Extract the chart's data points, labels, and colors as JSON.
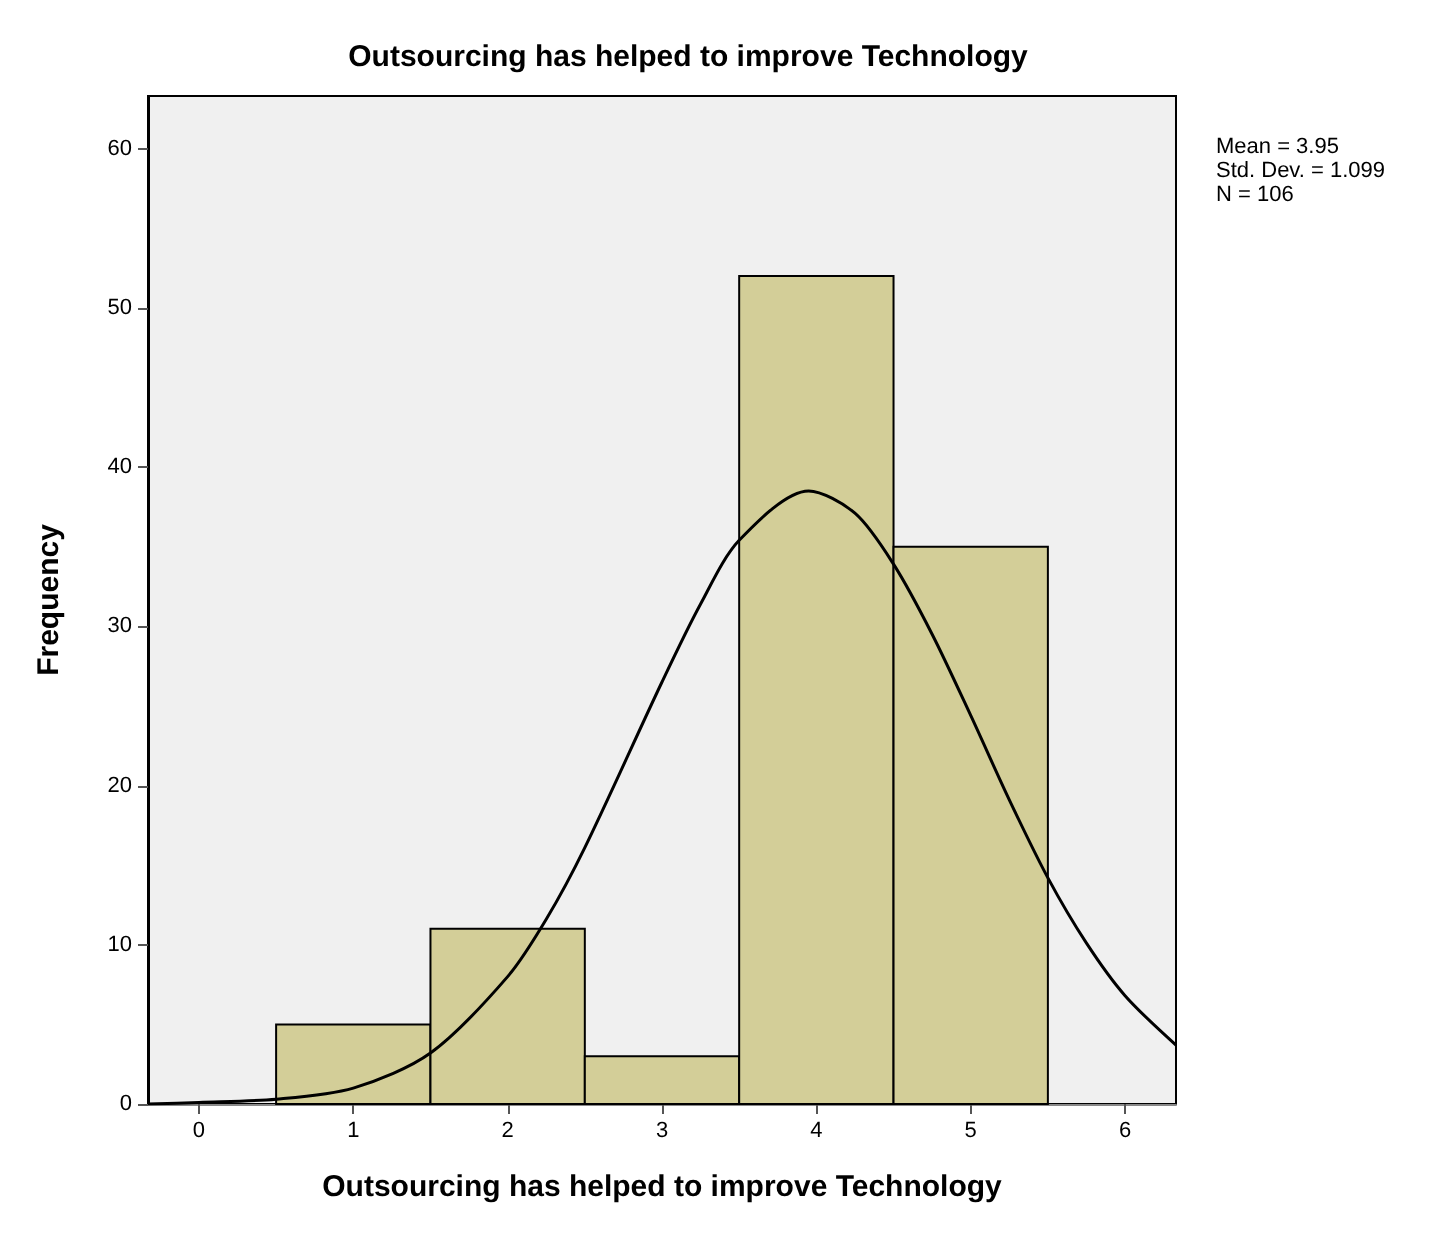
{
  "chart_data": {
    "type": "histogram",
    "title": "Outsourcing has helped to improve Technology",
    "xlabel": "Outsourcing has helped to improve Technology",
    "ylabel": "Frequency",
    "bins": [
      0.5,
      1.5,
      2.5,
      3.5,
      4.5,
      5.5
    ],
    "values": [
      5,
      11,
      3,
      52,
      35
    ],
    "color": "#d3ce98",
    "series": [
      {
        "type": "line",
        "color": "#000000",
        "marker": "none",
        "x": [
          -0.33,
          0,
          0.5,
          1,
          1.5,
          2,
          2.25,
          2.5,
          3,
          3.25,
          3.5,
          3.95,
          4.25,
          4.5,
          4.75,
          5,
          5.25,
          5.5,
          5.75,
          6,
          6.33
        ],
        "values": [
          0,
          0.1,
          0.3,
          1,
          3.2,
          8,
          11.6,
          16.1,
          26.5,
          31.4,
          35.4,
          38.5,
          37.1,
          33.9,
          29.5,
          24.4,
          19.1,
          14.2,
          10.1,
          6.8,
          3.7
        ]
      }
    ],
    "xlim": [
      -0.33,
      6.33
    ],
    "xticks": [
      0,
      1,
      2,
      3,
      4,
      5,
      6
    ],
    "ylim": [
      0,
      63.3
    ],
    "yticks": [
      0,
      10,
      20,
      30,
      40,
      50,
      60
    ],
    "grid": false,
    "annotations": [
      "Mean = 3.95",
      "Std. Dev. = 1.099",
      "N = 106"
    ]
  }
}
